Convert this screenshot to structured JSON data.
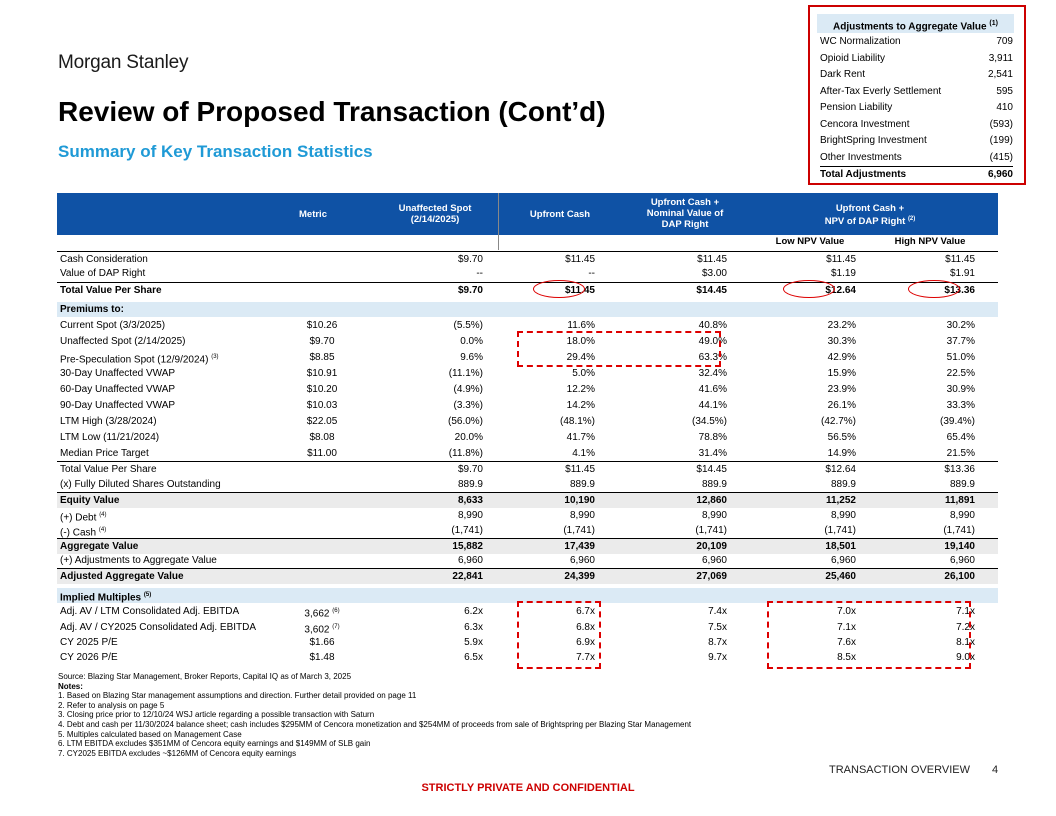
{
  "brand": "Morgan Stanley",
  "title": "Review of Proposed Transaction (Cont’d)",
  "subtitle": "Summary of Key Transaction Statistics",
  "adjustments": {
    "header": "Adjustments to Aggregate Value",
    "header_note": "(1)",
    "items": [
      {
        "label": "WC Normalization",
        "value": "709"
      },
      {
        "label": "Opioid Liability",
        "value": "3,911"
      },
      {
        "label": "Dark Rent",
        "value": "2,541"
      },
      {
        "label": "After-Tax Everly Settlement",
        "value": "595"
      },
      {
        "label": "Pension Liability",
        "value": "410"
      },
      {
        "label": "Cencora Investment",
        "value": "(593)"
      },
      {
        "label": "BrightSpring Investment",
        "value": "(199)"
      },
      {
        "label": "Other Investments",
        "value": "(415)"
      }
    ],
    "total_label": "Total Adjustments",
    "total_value": "6,960"
  },
  "table": {
    "headers": {
      "metric": "Metric",
      "unaffected_1": "Unaffected Spot",
      "unaffected_2": "(2/14/2025)",
      "upfront_cash": "Upfront Cash",
      "nominal_1": "Upfront Cash +",
      "nominal_2": "Nominal Value of",
      "nominal_3": "DAP Right",
      "npv_1": "Upfront Cash +",
      "npv_2": "NPV of DAP Right",
      "npv_note": "(2)",
      "low": "Low NPV Value",
      "high": "High NPV Value"
    },
    "rows": [
      {
        "label": "Cash Consideration",
        "metric": "",
        "ua": "$9.70",
        "uc": "$11.45",
        "nv": "$11.45",
        "lo": "$11.45",
        "hi": "$11.45"
      },
      {
        "label": "Value of DAP Right",
        "metric": "",
        "ua": "--",
        "uc": "--",
        "nv": "$3.00",
        "lo": "$1.19",
        "hi": "$1.91"
      },
      {
        "label": "Total Value Per Share",
        "metric": "",
        "ua": "$9.70",
        "uc": "$11.45",
        "nv": "$14.45",
        "lo": "$12.64",
        "hi": "$13.36"
      },
      {
        "label": "Premiums to:",
        "metric": "",
        "ua": "",
        "uc": "",
        "nv": "",
        "lo": "",
        "hi": ""
      },
      {
        "label": "Current Spot (3/3/2025)",
        "metric": "$10.26",
        "ua": "(5.5%)",
        "uc": "11.6%",
        "nv": "40.8%",
        "lo": "23.2%",
        "hi": "30.2%"
      },
      {
        "label": "Unaffected Spot (2/14/2025)",
        "metric": "$9.70",
        "ua": "0.0%",
        "uc": "18.0%",
        "nv": "49.0%",
        "lo": "30.3%",
        "hi": "37.7%"
      },
      {
        "label": "Pre-Speculation Spot (12/9/2024)",
        "note": "(3)",
        "metric": "$8.85",
        "ua": "9.6%",
        "uc": "29.4%",
        "nv": "63.3%",
        "lo": "42.9%",
        "hi": "51.0%"
      },
      {
        "label": "30-Day Unaffected VWAP",
        "metric": "$10.91",
        "ua": "(11.1%)",
        "uc": "5.0%",
        "nv": "32.4%",
        "lo": "15.9%",
        "hi": "22.5%"
      },
      {
        "label": "60-Day Unaffected VWAP",
        "metric": "$10.20",
        "ua": "(4.9%)",
        "uc": "12.2%",
        "nv": "41.6%",
        "lo": "23.9%",
        "hi": "30.9%"
      },
      {
        "label": "90-Day Unaffected VWAP",
        "metric": "$10.03",
        "ua": "(3.3%)",
        "uc": "14.2%",
        "nv": "44.1%",
        "lo": "26.1%",
        "hi": "33.3%"
      },
      {
        "label": "LTM High (3/28/2024)",
        "metric": "$22.05",
        "ua": "(56.0%)",
        "uc": "(48.1%)",
        "nv": "(34.5%)",
        "lo": "(42.7%)",
        "hi": "(39.4%)"
      },
      {
        "label": "LTM Low (11/21/2024)",
        "metric": "$8.08",
        "ua": "20.0%",
        "uc": "41.7%",
        "nv": "78.8%",
        "lo": "56.5%",
        "hi": "65.4%"
      },
      {
        "label": "Median Price Target",
        "metric": "$11.00",
        "ua": "(11.8%)",
        "uc": "4.1%",
        "nv": "31.4%",
        "lo": "14.9%",
        "hi": "21.5%"
      },
      {
        "label": "Total Value Per Share",
        "metric": "",
        "ua": "$9.70",
        "uc": "$11.45",
        "nv": "$14.45",
        "lo": "$12.64",
        "hi": "$13.36"
      },
      {
        "label": "(x) Fully Diluted Shares Outstanding",
        "metric": "",
        "ua": "889.9",
        "uc": "889.9",
        "nv": "889.9",
        "lo": "889.9",
        "hi": "889.9"
      },
      {
        "label": "Equity Value",
        "metric": "",
        "ua": "8,633",
        "uc": "10,190",
        "nv": "12,860",
        "lo": "11,252",
        "hi": "11,891"
      },
      {
        "label": "(+) Debt",
        "note": "(4)",
        "metric": "",
        "ua": "8,990",
        "uc": "8,990",
        "nv": "8,990",
        "lo": "8,990",
        "hi": "8,990"
      },
      {
        "label": "(-) Cash",
        "note": "(4)",
        "metric": "",
        "ua": "(1,741)",
        "uc": "(1,741)",
        "nv": "(1,741)",
        "lo": "(1,741)",
        "hi": "(1,741)"
      },
      {
        "label": "Aggregate Value",
        "metric": "",
        "ua": "15,882",
        "uc": "17,439",
        "nv": "20,109",
        "lo": "18,501",
        "hi": "19,140"
      },
      {
        "label": "(+) Adjustments to Aggregate Value",
        "metric": "",
        "ua": "6,960",
        "uc": "6,960",
        "nv": "6,960",
        "lo": "6,960",
        "hi": "6,960"
      },
      {
        "label": "Adjusted Aggregate Value",
        "metric": "",
        "ua": "22,841",
        "uc": "24,399",
        "nv": "27,069",
        "lo": "25,460",
        "hi": "26,100"
      },
      {
        "label": "Implied Multiples",
        "note": "(5)",
        "metric": "",
        "ua": "",
        "uc": "",
        "nv": "",
        "lo": "",
        "hi": ""
      },
      {
        "label": "Adj. AV / LTM Consolidated Adj. EBITDA",
        "metric": "3,662",
        "metric_note": "(6)",
        "ua": "6.2x",
        "uc": "6.7x",
        "nv": "7.4x",
        "lo": "7.0x",
        "hi": "7.1x"
      },
      {
        "label": "Adj. AV / CY2025 Consolidated Adj. EBITDA",
        "metric": "3,602",
        "metric_note": "(7)",
        "ua": "6.3x",
        "uc": "6.8x",
        "nv": "7.5x",
        "lo": "7.1x",
        "hi": "7.2x"
      },
      {
        "label": "CY 2025 P/E",
        "metric": "$1.66",
        "ua": "5.9x",
        "uc": "6.9x",
        "nv": "8.7x",
        "lo": "7.6x",
        "hi": "8.1x"
      },
      {
        "label": "CY 2026 P/E",
        "metric": "$1.48",
        "ua": "6.5x",
        "uc": "7.7x",
        "nv": "9.7x",
        "lo": "8.5x",
        "hi": "9.0x"
      }
    ]
  },
  "source": "Source: Blazing Star Management, Broker Reports, Capital IQ as of March 3, 2025",
  "notes_header": "Notes:",
  "notes": [
    "1.   Based on Blazing Star management assumptions and direction. Further detail provided on page 11",
    "2.   Refer to analysis on page 5",
    "3.   Closing price prior to 12/10/24 WSJ article regarding a possible transaction with Saturn",
    "4.   Debt and cash per 11/30/2024 balance sheet; cash includes $295MM of Cencora monetization and $254MM of proceeds from sale of Brightspring per Blazing Star Management",
    "5.   Multiples calculated based on Management Case",
    "6.   LTM EBITDA excludes $351MM of Cencora equity earnings and $149MM of SLB gain",
    "7.   CY2025 EBITDA excludes ~$126MM of Cencora equity earnings"
  ],
  "footer": {
    "section": "TRANSACTION OVERVIEW",
    "page": "4",
    "confidential": "STRICTLY PRIVATE AND CONFIDENTIAL"
  }
}
